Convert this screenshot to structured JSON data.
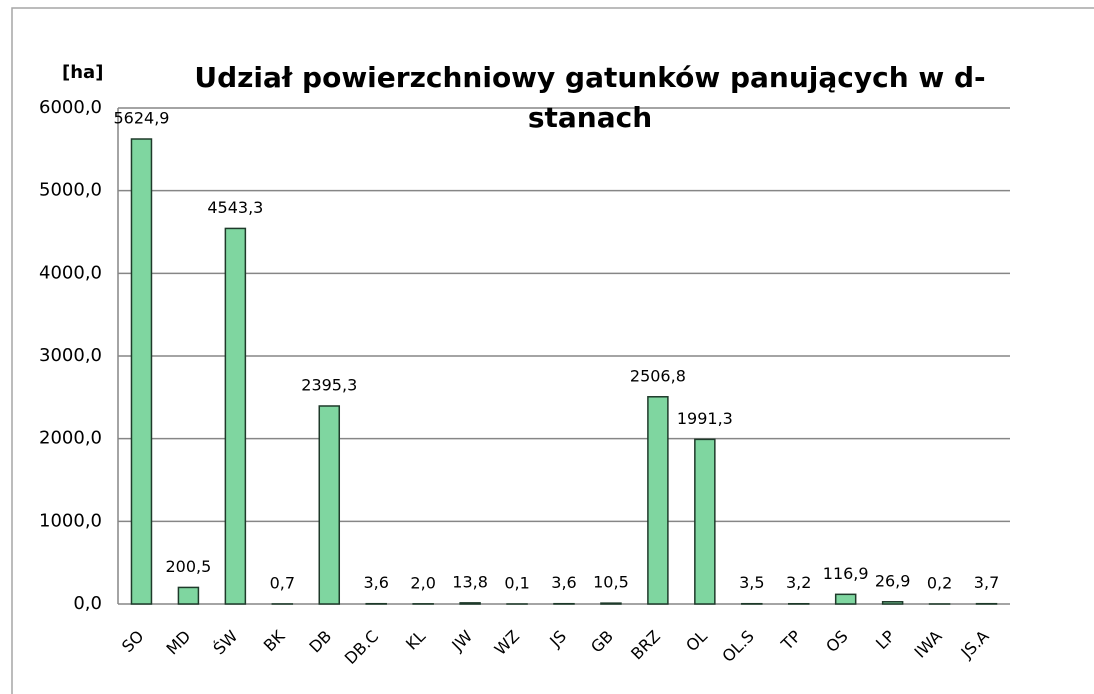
{
  "chart_data": {
    "type": "bar",
    "title": "Udział powierzchniowy gatunków panujących w d-stanach",
    "y_label": "[ha]",
    "categories": [
      "SO",
      "MD",
      "ŚW",
      "BK",
      "DB",
      "DB.C",
      "KL",
      "JW",
      "WZ",
      "JS",
      "GB",
      "BRZ",
      "OL",
      "OL.S",
      "TP",
      "OS",
      "LP",
      "IWA",
      "JS.A"
    ],
    "values": [
      5624.9,
      200.5,
      4543.3,
      0.7,
      2395.3,
      3.6,
      2.0,
      13.8,
      0.1,
      3.6,
      10.5,
      2506.8,
      1991.3,
      3.5,
      3.2,
      116.9,
      26.9,
      0.2,
      3.7
    ],
    "value_labels": [
      "5624,9",
      "200,5",
      "4543,3",
      "0,7",
      "2395,3",
      "3,6",
      "2,0",
      "13,8",
      "0,1",
      "3,6",
      "10,5",
      "2506,8",
      "1991,3",
      "3,5",
      "3,2",
      "116,9",
      "26,9",
      "0,2",
      "3,7"
    ],
    "color": "#7fd6a0",
    "ylim": [
      0,
      6000
    ],
    "yticks": [
      {
        "value": 0,
        "label": "0,0"
      },
      {
        "value": 1000,
        "label": "1000,0"
      },
      {
        "value": 2000,
        "label": "2000,0"
      },
      {
        "value": 3000,
        "label": "3000,0"
      },
      {
        "value": 4000,
        "label": "4000,0"
      },
      {
        "value": 5000,
        "label": "5000,0"
      },
      {
        "value": 6000,
        "label": "6000,0"
      }
    ],
    "grid": true
  }
}
